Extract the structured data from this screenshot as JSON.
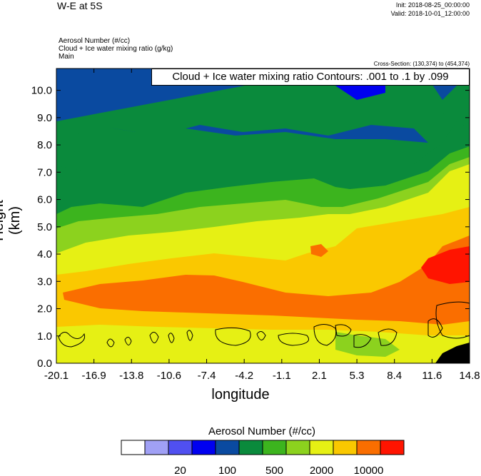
{
  "header": {
    "title": "W-E at 5S",
    "init": "Init: 2018-08-25_00:00:00",
    "valid": "Valid: 2018-10-01_12:00:00",
    "field1": "Aerosol Number   (#/cc)",
    "field2": "Cloud + Ice water mixing ratio   (g/kg)",
    "field3": "Main",
    "cross_section": "Cross-Section: (130,374) to (454,374)"
  },
  "chart_data": {
    "type": "heatmap",
    "overlay_label": "Cloud + Ice water mixing ratio Contours: .001 to .1 by .099",
    "xlabel": "longitude",
    "ylabel": "Height (km)",
    "xticks": [
      "-20.1",
      "-16.9",
      "-13.8",
      "-10.6",
      "-7.4",
      "-4.2",
      "-1.1",
      "2.1",
      "5.3",
      "8.4",
      "11.6",
      "14.8"
    ],
    "yticks": [
      "0.0",
      "1.0",
      "2.0",
      "3.0",
      "4.0",
      "5.0",
      "6.0",
      "7.0",
      "8.0",
      "9.0",
      "10.0"
    ],
    "xlim": [
      -20.1,
      14.8
    ],
    "ylim": [
      0,
      10.8
    ],
    "legend_title": "Aerosol Number  (#/cc)",
    "legend_labels": [
      "20",
      "100",
      "500",
      "2000",
      "10000"
    ],
    "palette": [
      "#ffffff",
      "#a0a0f5",
      "#5050f0",
      "#0000f0",
      "#0a4aa0",
      "#0a8a3c",
      "#3cb41e",
      "#8cd21e",
      "#e6f014",
      "#fac800",
      "#fa6e00",
      "#ff1400"
    ]
  }
}
